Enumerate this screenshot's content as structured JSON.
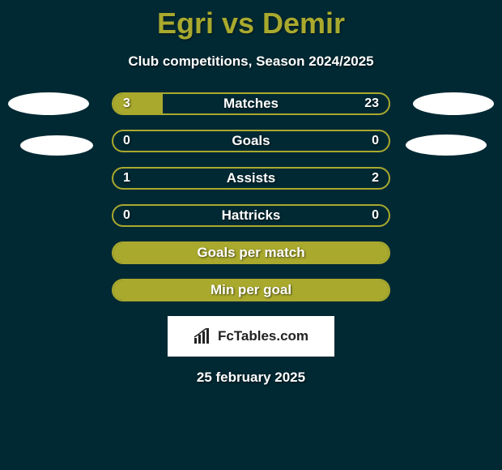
{
  "title": "Egri vs Demir",
  "subtitle": "Club competitions, Season 2024/2025",
  "brand": "FcTables.com",
  "date": "25 february 2025",
  "colors": {
    "background": "#002933",
    "accent": "#a9a92e",
    "text": "#ffffff",
    "brand_bg": "#ffffff",
    "brand_text": "#222222"
  },
  "bars": [
    {
      "label": "Matches",
      "left": "3",
      "right": "23",
      "left_pct": 18,
      "right_pct": 0,
      "full": false
    },
    {
      "label": "Goals",
      "left": "0",
      "right": "0",
      "left_pct": 0,
      "right_pct": 0,
      "full": false
    },
    {
      "label": "Assists",
      "left": "1",
      "right": "2",
      "left_pct": 0,
      "right_pct": 0,
      "full": false
    },
    {
      "label": "Hattricks",
      "left": "0",
      "right": "0",
      "left_pct": 0,
      "right_pct": 0,
      "full": false
    },
    {
      "label": "Goals per match",
      "left": "",
      "right": "",
      "left_pct": 0,
      "right_pct": 0,
      "full": true
    },
    {
      "label": "Min per goal",
      "left": "",
      "right": "",
      "left_pct": 0,
      "right_pct": 0,
      "full": true
    }
  ],
  "ellipses": {
    "top_left": true,
    "mid_left": true,
    "top_right": true,
    "mid_right": true
  }
}
